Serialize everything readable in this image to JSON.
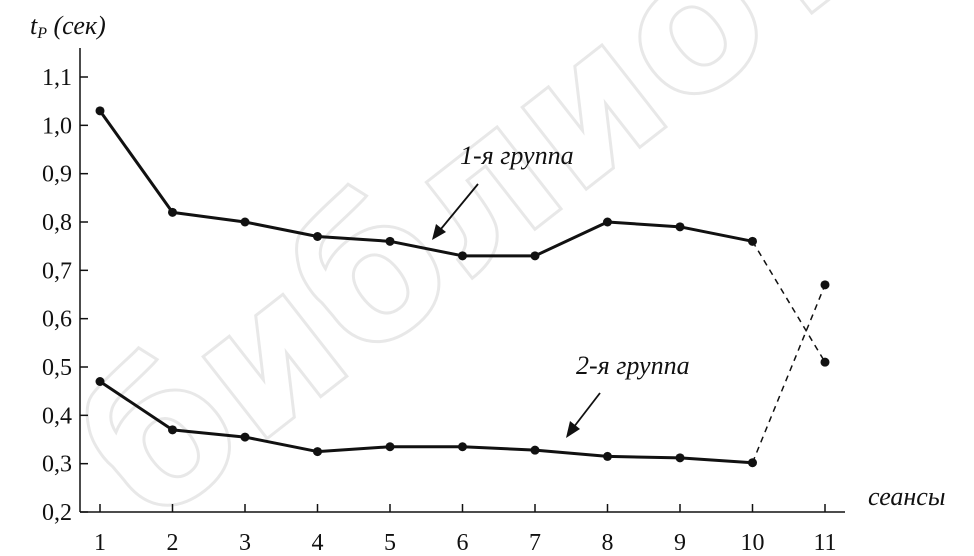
{
  "watermark": "библиотека",
  "chart_data": {
    "type": "line",
    "y_title_main": "t",
    "y_title_sub": "P",
    "y_title_rest": " (сек)",
    "xlabel": "сеансы",
    "ylim": [
      0.2,
      1.1
    ],
    "yticks": [
      "0,2",
      "0,3",
      "0,4",
      "0,5",
      "0,6",
      "0,7",
      "0,8",
      "0,9",
      "1,0",
      "1,1"
    ],
    "ytick_values": [
      0.2,
      0.3,
      0.4,
      0.5,
      0.6,
      0.7,
      0.8,
      0.9,
      1.0,
      1.1
    ],
    "x": [
      1,
      2,
      3,
      4,
      5,
      6,
      7,
      8,
      9,
      10,
      11
    ],
    "xticks": [
      "1",
      "2",
      "3",
      "4",
      "5",
      "6",
      "7",
      "8",
      "9",
      "10",
      "11"
    ],
    "series": [
      {
        "name": "1-я группа",
        "values": [
          1.03,
          0.82,
          0.8,
          0.77,
          0.76,
          0.73,
          0.73,
          0.8,
          0.79,
          0.76,
          0.51
        ],
        "dashed_from_index": 9
      },
      {
        "name": "2-я группа",
        "values": [
          0.47,
          0.37,
          0.355,
          0.325,
          0.335,
          0.335,
          0.328,
          0.315,
          0.312,
          0.302,
          0.67
        ],
        "dashed_from_index": 9
      }
    ]
  }
}
